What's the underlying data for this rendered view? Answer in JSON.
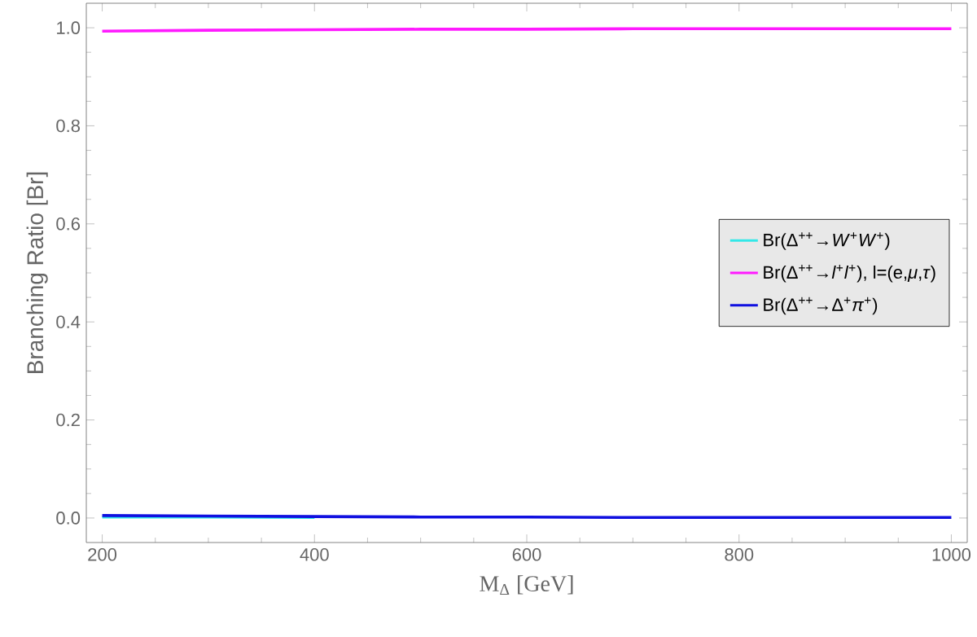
{
  "chart_data": {
    "type": "line",
    "xlabel": "M$_{Δ}$ [GeV]",
    "ylabel": "Branching Ratio [Br]",
    "x": [
      200,
      300,
      400,
      500,
      600,
      700,
      800,
      900,
      1000
    ],
    "series": [
      {
        "name": "Br(Δ$^{++}$→*W*$^{+}$*W*$^{+}$)",
        "color": "#33e8e8",
        "values": [
          0.002,
          0.002,
          0.001,
          null,
          null,
          null,
          null,
          null,
          null
        ]
      },
      {
        "name": "Br(Δ$^{++}$→*l*$^{+}$*l*$^{+}$), l=(e,*μ*,*τ*)",
        "color": "#ff1aff",
        "values": [
          0.993,
          0.995,
          0.996,
          0.997,
          0.997,
          0.998,
          0.998,
          0.998,
          0.998
        ]
      },
      {
        "name": "Br(Δ$^{++}$→Δ$^{+}$*π*$^{+}$)",
        "color": "#1010e0",
        "values": [
          0.005,
          0.004,
          0.003,
          0.002,
          0.002,
          0.001,
          0.001,
          0.001,
          0.001
        ]
      }
    ],
    "xlim": [
      185,
      1015
    ],
    "ylim": [
      -0.05,
      1.05
    ],
    "xticks": [
      200,
      400,
      600,
      800,
      1000
    ],
    "yticks": [
      {
        "value": 0,
        "label": "0.0"
      },
      {
        "value": 0.2,
        "label": "0.2"
      },
      {
        "value": 0.4,
        "label": "0.4"
      },
      {
        "value": 0.6,
        "label": "0.6"
      },
      {
        "value": 0.8,
        "label": "0.8"
      },
      {
        "value": 1,
        "label": "1.0"
      }
    ],
    "legend": "right",
    "grid": false,
    "marker": "none",
    "line_style": "solid"
  }
}
